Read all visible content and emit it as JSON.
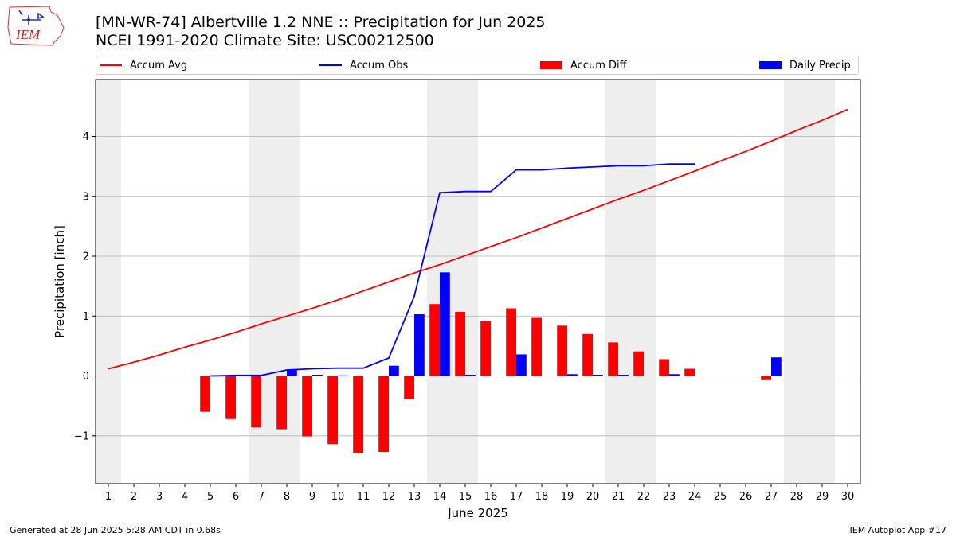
{
  "header": {
    "title_line1": "[MN-WR-74] Albertville 1.2 NNE :: Precipitation for Jun 2025",
    "title_line2": "NCEI 1991-2020 Climate Site: USC00212500",
    "logo_text": "IEM"
  },
  "footer": {
    "left": "Generated at 28 Jun 2025 5:28 AM CDT in 0.68s",
    "right": "IEM Autoplot App #17"
  },
  "colors": {
    "accum_avg": "#ff0000",
    "accum_obs": "#0000ff",
    "accum_diff": "#ff0000",
    "daily_precip": "#0000ff",
    "weekend_shade": "#eeeeee",
    "grid": "#b0b0b0"
  },
  "chart_data": {
    "type": "bar",
    "title": "[MN-WR-74] Albertville 1.2 NNE :: Precipitation for Jun 2025",
    "subtitle": "NCEI 1991-2020 Climate Site: USC00212500",
    "xlabel": "June 2025",
    "ylabel": "Precipitation [inch]",
    "xlim": [
      0.5,
      30.5
    ],
    "ylim": [
      -1.8,
      4.95
    ],
    "yticks": [
      -1,
      0,
      1,
      2,
      3,
      4
    ],
    "ytick_labels": [
      "−1",
      "0",
      "1",
      "2",
      "3",
      "4"
    ],
    "x": [
      1,
      2,
      3,
      4,
      5,
      6,
      7,
      8,
      9,
      10,
      11,
      12,
      13,
      14,
      15,
      16,
      17,
      18,
      19,
      20,
      21,
      22,
      23,
      24,
      25,
      26,
      27,
      28,
      29,
      30
    ],
    "grid": "horizontal",
    "legend_position": "top",
    "shaded_days": [
      [
        0.5,
        1.5
      ],
      [
        6.5,
        8.5
      ],
      [
        13.5,
        15.5
      ],
      [
        20.5,
        22.5
      ],
      [
        27.5,
        29.5
      ]
    ],
    "series": [
      {
        "name": "Accum Avg",
        "kind": "line",
        "x": [
          1,
          2,
          3,
          4,
          5,
          6,
          7,
          8,
          9,
          10,
          11,
          12,
          13,
          14,
          15,
          16,
          17,
          18,
          19,
          20,
          21,
          22,
          23,
          24,
          25,
          26,
          27,
          28,
          29,
          30
        ],
        "values": [
          0.12,
          0.23,
          0.35,
          0.48,
          0.6,
          0.73,
          0.87,
          1.0,
          1.13,
          1.27,
          1.42,
          1.57,
          1.72,
          1.86,
          2.01,
          2.16,
          2.31,
          2.47,
          2.63,
          2.79,
          2.95,
          3.1,
          3.26,
          3.42,
          3.59,
          3.75,
          3.92,
          4.1,
          4.27,
          4.45
        ]
      },
      {
        "name": "Accum Obs",
        "kind": "line",
        "x": [
          5,
          6,
          7,
          8,
          9,
          10,
          11,
          12,
          13,
          14,
          15,
          16,
          17,
          18,
          19,
          20,
          21,
          22,
          23,
          24
        ],
        "values": [
          0.0,
          0.01,
          0.01,
          0.1,
          0.12,
          0.13,
          0.13,
          0.3,
          1.33,
          3.06,
          3.08,
          3.08,
          3.44,
          3.44,
          3.47,
          3.49,
          3.51,
          3.51,
          3.54,
          3.54
        ]
      },
      {
        "name": "Accum Diff",
        "kind": "bar",
        "x": [
          5,
          6,
          7,
          8,
          9,
          10,
          11,
          12,
          13,
          14,
          15,
          16,
          17,
          18,
          19,
          20,
          21,
          22,
          23,
          24,
          27
        ],
        "values": [
          -0.6,
          -0.72,
          -0.86,
          -0.89,
          -1.01,
          -1.14,
          -1.29,
          -1.27,
          -0.39,
          1.2,
          1.07,
          0.92,
          1.13,
          0.97,
          0.84,
          0.7,
          0.56,
          0.41,
          0.28,
          0.12,
          -0.07
        ]
      },
      {
        "name": "Daily Precip",
        "kind": "bar",
        "x": [
          8,
          9,
          10,
          12,
          13,
          14,
          15,
          17,
          19,
          20,
          21,
          23,
          27
        ],
        "values": [
          0.1,
          0.02,
          0.01,
          0.17,
          1.03,
          1.73,
          0.02,
          0.36,
          0.03,
          0.02,
          0.02,
          0.03,
          0.31
        ]
      }
    ]
  }
}
